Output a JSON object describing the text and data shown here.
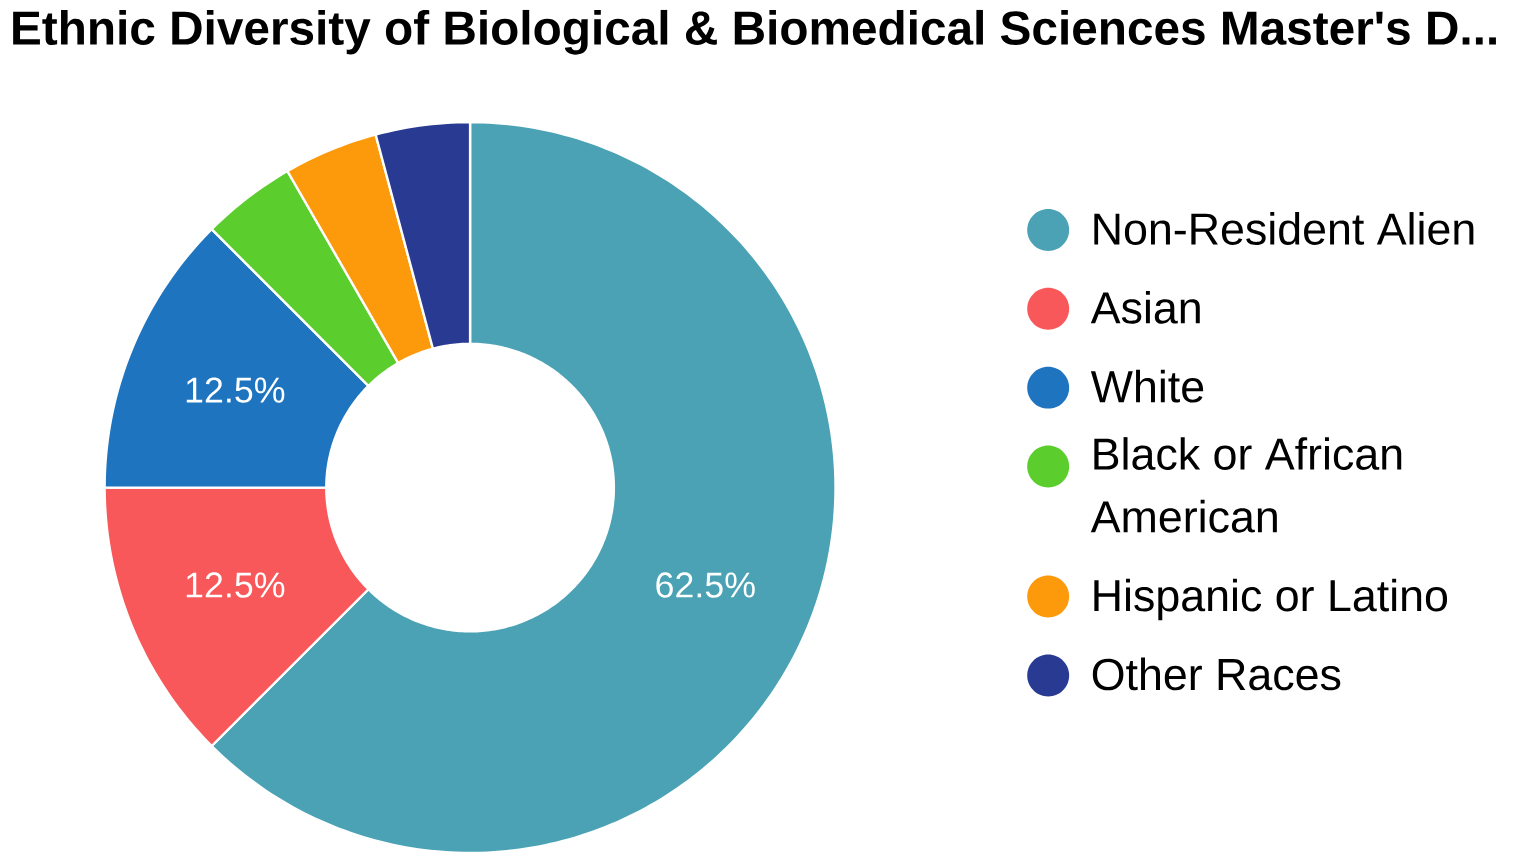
{
  "chart_data": {
    "type": "donut",
    "title": "Ethnic Diversity of Biological & Biomedical Sciences Master's D...",
    "categories": [
      "Non-Resident Alien",
      "Asian",
      "White",
      "Black or African American",
      "Hispanic or Latino",
      "Other Races"
    ],
    "values": [
      62.5,
      12.5,
      12.5,
      4.17,
      4.17,
      4.16
    ],
    "colors": [
      "#4aa2b4",
      "#f9585a",
      "#1f74bf",
      "#5bcd2d",
      "#fd9a0c",
      "#283a91"
    ],
    "value_labels": [
      "62.5%",
      "12.5%",
      "12.5%",
      null,
      null,
      null
    ],
    "legend": "right"
  }
}
